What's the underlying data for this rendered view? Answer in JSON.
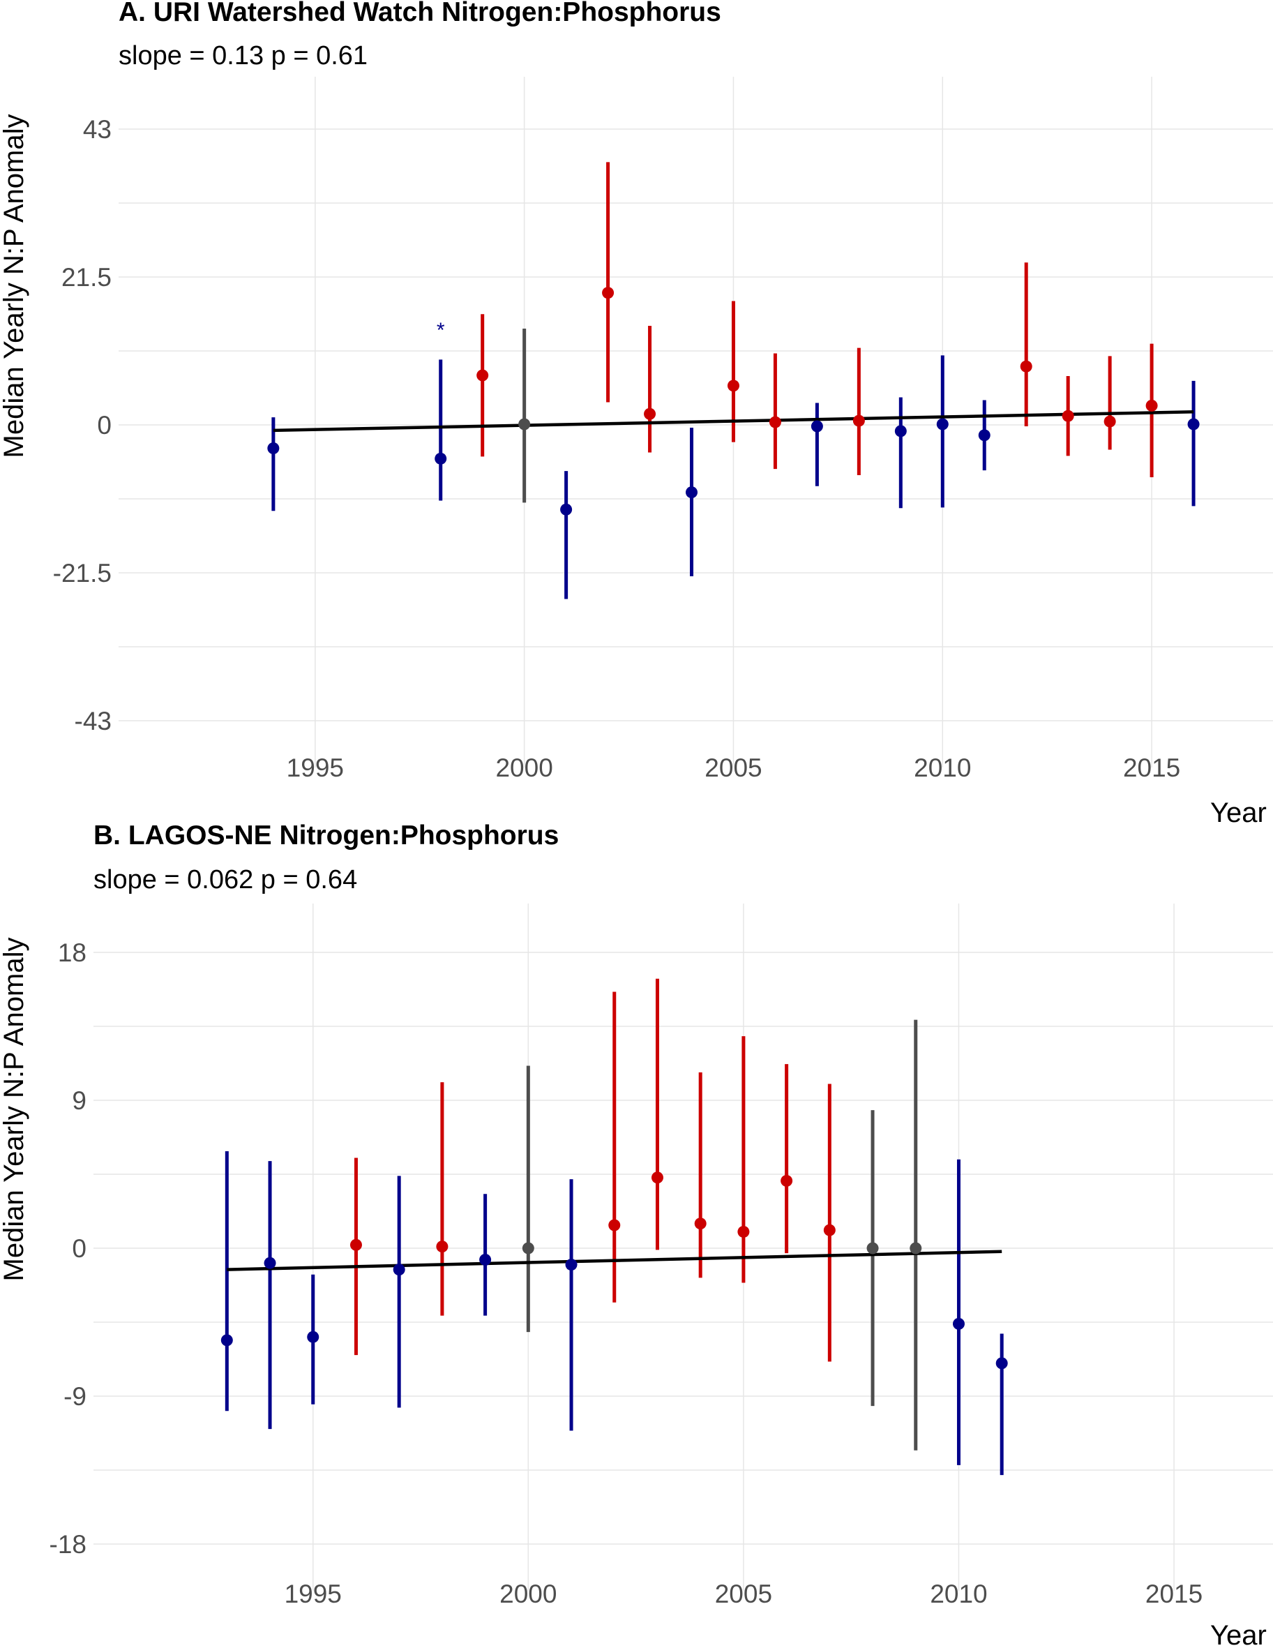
{
  "colors": {
    "above": "#cc0000",
    "below": "#00008b",
    "neutral": "#4d4d4d",
    "trend": "#000000"
  },
  "chart_data": [
    {
      "type": "scatter",
      "title": "A. URI Watershed Watch Nitrogen:Phosphorus",
      "subtitle": "slope = 0.13 p = 0.61",
      "xlabel": "Year",
      "ylabel": "Median Yearly N:P Anomaly",
      "xlim": [
        1990.3,
        2017.9
      ],
      "ylim": [
        -43,
        43
      ],
      "yticks": [
        43,
        21.5,
        0,
        -21.5,
        -43
      ],
      "ytick_labels": [
        "43",
        "21.5",
        "0",
        "-21.5",
        "-43"
      ],
      "xticks": [
        1995,
        2000,
        2005,
        2010,
        2015
      ],
      "xtick_labels": [
        "1995",
        "2000",
        "2005",
        "2010",
        "2015"
      ],
      "trend": {
        "x": [
          1994,
          2016
        ],
        "y": [
          -0.8,
          1.9
        ]
      },
      "annotations": [
        {
          "x": 1998,
          "y": 14.2,
          "text": "*",
          "color": "below"
        }
      ],
      "points": [
        {
          "year": 1994,
          "value": -3.4,
          "low": -12.5,
          "high": 1.1,
          "color": "below"
        },
        {
          "year": 1998,
          "value": -4.9,
          "low": -11.0,
          "high": 9.5,
          "color": "below"
        },
        {
          "year": 1999,
          "value": 7.2,
          "low": -4.6,
          "high": 16.1,
          "color": "above"
        },
        {
          "year": 2000,
          "value": 0.1,
          "low": -11.3,
          "high": 14.0,
          "color": "neutral"
        },
        {
          "year": 2001,
          "value": -12.3,
          "low": -25.3,
          "high": -6.7,
          "color": "below"
        },
        {
          "year": 2002,
          "value": 19.2,
          "low": 3.3,
          "high": 38.2,
          "color": "above"
        },
        {
          "year": 2003,
          "value": 1.6,
          "low": -4.0,
          "high": 14.4,
          "color": "above"
        },
        {
          "year": 2004,
          "value": -9.8,
          "low": -22.0,
          "high": -0.4,
          "color": "below"
        },
        {
          "year": 2005,
          "value": 5.7,
          "low": -2.5,
          "high": 18.0,
          "color": "above"
        },
        {
          "year": 2006,
          "value": 0.4,
          "low": -6.4,
          "high": 10.4,
          "color": "above"
        },
        {
          "year": 2007,
          "value": -0.2,
          "low": -8.9,
          "high": 3.2,
          "color": "below"
        },
        {
          "year": 2008,
          "value": 0.6,
          "low": -7.3,
          "high": 11.2,
          "color": "above"
        },
        {
          "year": 2009,
          "value": -0.9,
          "low": -12.1,
          "high": 4.0,
          "color": "below"
        },
        {
          "year": 2010,
          "value": 0.1,
          "low": -12.0,
          "high": 10.1,
          "color": "below"
        },
        {
          "year": 2011,
          "value": -1.5,
          "low": -6.6,
          "high": 3.6,
          "color": "below"
        },
        {
          "year": 2012,
          "value": 8.5,
          "low": -0.2,
          "high": 23.6,
          "color": "above"
        },
        {
          "year": 2013,
          "value": 1.3,
          "low": -4.5,
          "high": 7.1,
          "color": "above"
        },
        {
          "year": 2014,
          "value": 0.5,
          "low": -3.6,
          "high": 10.0,
          "color": "above"
        },
        {
          "year": 2015,
          "value": 2.8,
          "low": -7.6,
          "high": 11.8,
          "color": "above"
        },
        {
          "year": 2016,
          "value": 0.1,
          "low": -11.8,
          "high": 6.4,
          "color": "below"
        }
      ]
    },
    {
      "type": "scatter",
      "title": "B. LAGOS-NE Nitrogen:Phosphorus",
      "subtitle": "slope = 0.062 p = 0.64",
      "xlabel": "Year",
      "ylabel": "Median Yearly N:P Anomaly",
      "xlim": [
        1989.9,
        2017.3
      ],
      "ylim": [
        -18,
        18
      ],
      "yticks": [
        18,
        9,
        0,
        -9,
        -18
      ],
      "ytick_labels": [
        "18",
        "9",
        "0",
        "-9",
        "-18"
      ],
      "xticks": [
        1995,
        2000,
        2005,
        2010,
        2015
      ],
      "xtick_labels": [
        "1995",
        "2000",
        "2005",
        "2010",
        "2015"
      ],
      "trend": {
        "x": [
          1993,
          2011
        ],
        "y": [
          -1.3,
          -0.2
        ]
      },
      "annotations": [],
      "points": [
        {
          "year": 1993,
          "value": -5.6,
          "low": -9.9,
          "high": 5.9,
          "color": "below"
        },
        {
          "year": 1994,
          "value": -0.9,
          "low": -11.0,
          "high": 5.3,
          "color": "below"
        },
        {
          "year": 1995,
          "value": -5.4,
          "low": -9.5,
          "high": -1.6,
          "color": "below"
        },
        {
          "year": 1996,
          "value": 0.2,
          "low": -6.5,
          "high": 5.5,
          "color": "above"
        },
        {
          "year": 1997,
          "value": -1.3,
          "low": -9.7,
          "high": 4.4,
          "color": "below"
        },
        {
          "year": 1998,
          "value": 0.1,
          "low": -4.1,
          "high": 10.1,
          "color": "above"
        },
        {
          "year": 1999,
          "value": -0.7,
          "low": -4.1,
          "high": 3.3,
          "color": "below"
        },
        {
          "year": 2000,
          "value": 0.0,
          "low": -5.1,
          "high": 11.1,
          "color": "neutral"
        },
        {
          "year": 2001,
          "value": -1.0,
          "low": -11.1,
          "high": 4.2,
          "color": "below"
        },
        {
          "year": 2002,
          "value": 1.4,
          "low": -3.3,
          "high": 15.6,
          "color": "above"
        },
        {
          "year": 2003,
          "value": 4.3,
          "low": -0.1,
          "high": 16.4,
          "color": "above"
        },
        {
          "year": 2004,
          "value": 1.5,
          "low": -1.8,
          "high": 10.7,
          "color": "above"
        },
        {
          "year": 2005,
          "value": 1.0,
          "low": -2.1,
          "high": 12.9,
          "color": "above"
        },
        {
          "year": 2006,
          "value": 4.1,
          "low": -0.3,
          "high": 11.2,
          "color": "above"
        },
        {
          "year": 2007,
          "value": 1.1,
          "low": -6.9,
          "high": 10.0,
          "color": "above"
        },
        {
          "year": 2008,
          "value": 0.0,
          "low": -9.6,
          "high": 8.4,
          "color": "neutral"
        },
        {
          "year": 2009,
          "value": 0.0,
          "low": -12.3,
          "high": 13.9,
          "color": "neutral"
        },
        {
          "year": 2010,
          "value": -4.6,
          "low": -13.2,
          "high": 5.4,
          "color": "below"
        },
        {
          "year": 2011,
          "value": -7.0,
          "low": -13.8,
          "high": -5.2,
          "color": "below"
        }
      ]
    }
  ]
}
